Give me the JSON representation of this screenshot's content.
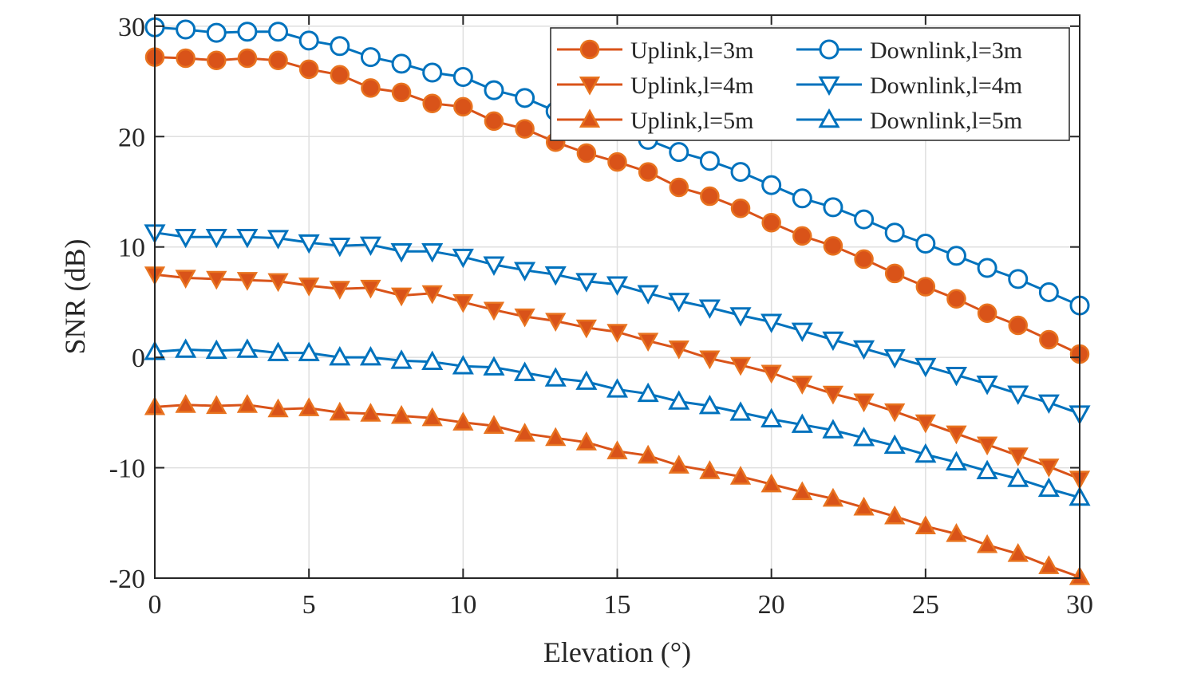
{
  "chart_data": {
    "type": "line",
    "title": "",
    "xlabel": "Elevation (°)",
    "ylabel": "SNR (dB)",
    "xlim": [
      0,
      30
    ],
    "ylim": [
      -20,
      31
    ],
    "xticks": [
      0,
      5,
      10,
      15,
      20,
      25,
      30
    ],
    "yticks": [
      -20,
      -10,
      0,
      10,
      20,
      30
    ],
    "xtick_labels": [
      "0",
      "5",
      "10",
      "15",
      "20",
      "25",
      "30"
    ],
    "ytick_labels": [
      "-20",
      "-10",
      "0",
      "10",
      "20",
      "30"
    ],
    "grid": true,
    "legend_position": "top-right",
    "x": [
      0,
      1,
      2,
      3,
      4,
      5,
      6,
      7,
      8,
      9,
      10,
      11,
      12,
      13,
      14,
      15,
      16,
      17,
      18,
      19,
      20,
      21,
      22,
      23,
      24,
      25,
      26,
      27,
      28,
      29,
      30
    ],
    "series": [
      {
        "name": "Uplink,l=3m",
        "color": "#D95319",
        "marker": "circle",
        "filled": true,
        "values": [
          27.2,
          27.1,
          26.9,
          27.1,
          26.9,
          26.1,
          25.6,
          24.4,
          24.0,
          23.0,
          22.7,
          21.4,
          20.7,
          19.5,
          18.5,
          17.7,
          16.8,
          15.4,
          14.6,
          13.5,
          12.2,
          11.0,
          10.1,
          8.9,
          7.6,
          6.4,
          5.3,
          4.0,
          2.9,
          1.6,
          0.3
        ]
      },
      {
        "name": "Uplink,l=4m",
        "color": "#D95319",
        "marker": "triangle-down",
        "filled": true,
        "values": [
          7.5,
          7.2,
          7.1,
          7.0,
          6.9,
          6.5,
          6.2,
          6.3,
          5.6,
          5.8,
          5.0,
          4.3,
          3.7,
          3.3,
          2.7,
          2.3,
          1.5,
          0.8,
          -0.1,
          -0.7,
          -1.4,
          -2.4,
          -3.3,
          -4.0,
          -4.9,
          -5.9,
          -6.9,
          -7.9,
          -8.9,
          -9.9,
          -11.0
        ]
      },
      {
        "name": "Uplink,l=5m",
        "color": "#D95319",
        "marker": "triangle-up",
        "filled": true,
        "values": [
          -4.5,
          -4.3,
          -4.4,
          -4.3,
          -4.7,
          -4.6,
          -5.0,
          -5.1,
          -5.3,
          -5.5,
          -5.9,
          -6.2,
          -6.9,
          -7.3,
          -7.7,
          -8.5,
          -8.9,
          -9.8,
          -10.3,
          -10.8,
          -11.5,
          -12.2,
          -12.8,
          -13.6,
          -14.4,
          -15.3,
          -16.0,
          -17.0,
          -17.8,
          -18.9,
          -19.9
        ]
      },
      {
        "name": "Downlink,l=3m",
        "color": "#0072BD",
        "marker": "circle",
        "filled": false,
        "values": [
          29.9,
          29.7,
          29.4,
          29.5,
          29.5,
          28.7,
          28.2,
          27.2,
          26.6,
          25.8,
          25.4,
          24.2,
          23.5,
          22.3,
          21.6,
          20.6,
          19.7,
          18.6,
          17.8,
          16.8,
          15.6,
          14.4,
          13.6,
          12.5,
          11.3,
          10.3,
          9.2,
          8.1,
          7.1,
          5.9,
          4.7
        ]
      },
      {
        "name": "Downlink,l=4m",
        "color": "#0072BD",
        "marker": "triangle-down",
        "filled": false,
        "values": [
          11.3,
          10.9,
          10.9,
          10.9,
          10.8,
          10.4,
          10.1,
          10.2,
          9.6,
          9.6,
          9.1,
          8.4,
          7.9,
          7.5,
          6.9,
          6.6,
          5.8,
          5.1,
          4.5,
          3.8,
          3.2,
          2.4,
          1.6,
          0.8,
          0.0,
          -0.8,
          -1.6,
          -2.4,
          -3.3,
          -4.1,
          -5.1
        ]
      },
      {
        "name": "Downlink,l=5m",
        "color": "#0072BD",
        "marker": "triangle-up",
        "filled": false,
        "values": [
          0.5,
          0.7,
          0.6,
          0.7,
          0.4,
          0.4,
          0.0,
          0.0,
          -0.3,
          -0.4,
          -0.8,
          -0.9,
          -1.4,
          -1.9,
          -2.2,
          -2.9,
          -3.3,
          -4.0,
          -4.4,
          -5.0,
          -5.6,
          -6.1,
          -6.6,
          -7.3,
          -8.0,
          -8.8,
          -9.5,
          -10.3,
          -11.0,
          -11.9,
          -12.7
        ]
      }
    ]
  }
}
